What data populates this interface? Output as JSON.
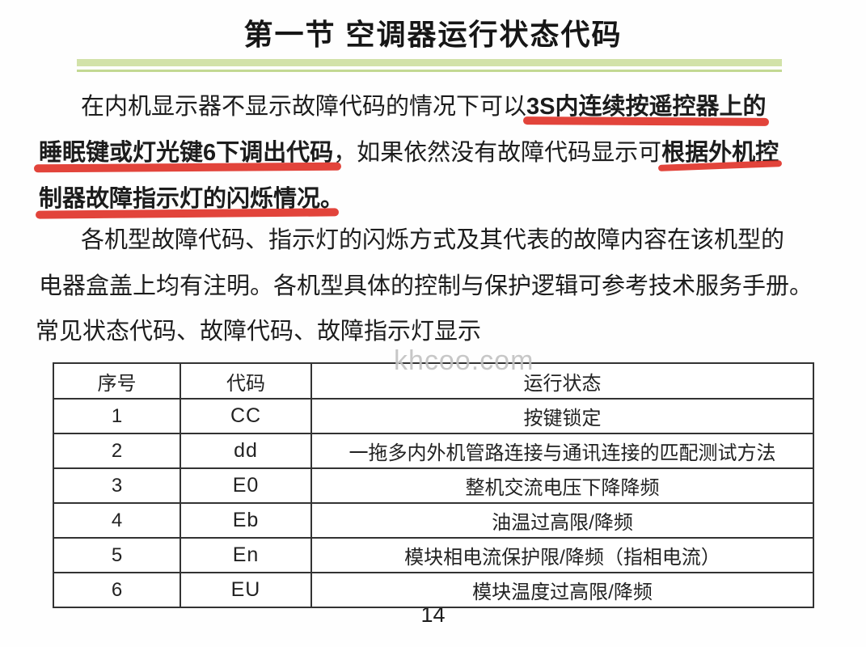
{
  "header": {
    "title": "第一节 空调器运行状态代码"
  },
  "intro": {
    "line1_normal": "在内机显示器不显示故障代码的情况下可以",
    "line1_marked": "3S内连续按遥控器上的",
    "line2_marked1": "睡眠键或灯光键6下调出代码",
    "line2_normal": "，如果依然没有故障代码显示可",
    "line2_marked2": "根据外机控",
    "line3_marked": "制器故障指示灯的闪烁情况。"
  },
  "body": {
    "line1": "各机型故障代码、指示灯的闪烁方式及其代表的故障内容在该机型的",
    "line2": "电器盒盖上均有注明。各机型具体的控制与保护逻辑可参考技术服务手册。"
  },
  "table_caption": "常见状态代码、故障代码、故障指示灯显示",
  "watermark": "khcoo.com",
  "table": {
    "headers": [
      "序号",
      "代码",
      "运行状态"
    ],
    "rows": [
      [
        "1",
        "CC",
        "按键锁定"
      ],
      [
        "2",
        "dd",
        "一拖多内外机管路连接与通讯连接的匹配测试方法"
      ],
      [
        "3",
        "E0",
        "整机交流电压下降降频"
      ],
      [
        "4",
        "Eb",
        "油温过高限/降频"
      ],
      [
        "5",
        "En",
        "模块相电流保护限/降频（指相电流）"
      ],
      [
        "6",
        "EU",
        "模块温度过高限/降频"
      ]
    ]
  },
  "page_number": "14",
  "colors": {
    "marker_red": "#e03a30",
    "divider_green_band": "#d2e2a9",
    "divider_green_line": "#c3d893",
    "table_border": "#333333",
    "watermark_gray": "#c2c2c2"
  }
}
